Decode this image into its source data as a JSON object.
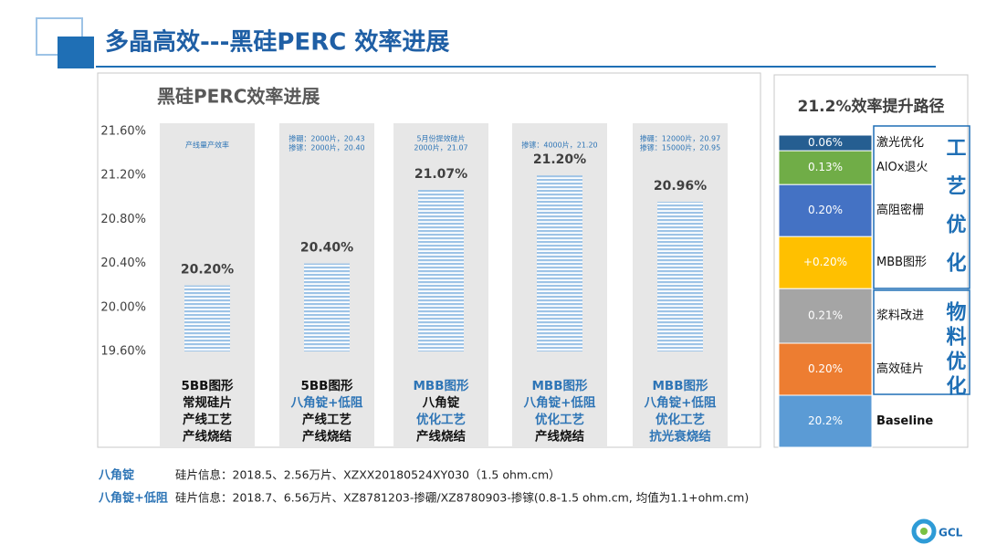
{
  "header": {
    "title": "多晶高效---黑硅PERC 效率进展"
  },
  "chart_data": [
    {
      "type": "bar",
      "title": "黑硅PERC效率进展",
      "categories": [
        [
          "5BB图形",
          "常规硅片",
          "产线工艺",
          "产线烧结"
        ],
        [
          "5BB图形",
          "八角锭+低阻",
          "产线工艺",
          "产线烧结"
        ],
        [
          "MBB图形",
          "八角锭",
          "优化工艺",
          "产线烧结"
        ],
        [
          "MBB图形",
          "八角锭+低阻",
          "优化工艺",
          "产线烧结"
        ],
        [
          "MBB图形",
          "八角锭+低阻",
          "优化工艺",
          "抗光衰烧结"
        ]
      ],
      "category_colors": [
        [
          "#111111",
          "#111111",
          "#111111",
          "#111111"
        ],
        [
          "#111111",
          "#2e75b6",
          "#111111",
          "#111111"
        ],
        [
          "#2e75b6",
          "#111111",
          "#2e75b6",
          "#111111"
        ],
        [
          "#2e75b6",
          "#2e75b6",
          "#2e75b6",
          "#111111"
        ],
        [
          "#2e75b6",
          "#2e75b6",
          "#2e75b6",
          "#2e75b6"
        ]
      ],
      "annotations": [
        [
          "产线量产效率"
        ],
        [
          "掺硼：2000片，20.43",
          "掺镓：2000片，20.40"
        ],
        [
          "5月份提效硅片",
          "2000片，21.07"
        ],
        [
          "掺镓：4000片，21.20"
        ],
        [
          "掺硼：12000片，20.97",
          "掺镓：15000片，20.95"
        ]
      ],
      "values": [
        20.2,
        20.4,
        21.07,
        21.2,
        20.96
      ],
      "value_labels": [
        "20.20%",
        "20.40%",
        "21.07%",
        "21.20%",
        "20.96%"
      ],
      "color": "#9dc3e6",
      "ylim": [
        19.6,
        21.6
      ],
      "yticks": [
        {
          "value": 19.6,
          "label": "19.60%"
        },
        {
          "value": 20.0,
          "label": "20.00%"
        },
        {
          "value": 20.4,
          "label": "20.40%"
        },
        {
          "value": 20.8,
          "label": "20.80%"
        },
        {
          "value": 21.2,
          "label": "21.20%"
        },
        {
          "value": 21.6,
          "label": "21.60%"
        }
      ]
    },
    {
      "type": "stacked",
      "title": "21.2%效率提升路径",
      "categories": [
        "Baseline",
        "高效硅片",
        "浆料改进",
        "MBB图形",
        "高阻密栅",
        "AlOx退火",
        "激光优化"
      ],
      "values": [
        20.2,
        0.2,
        0.21,
        0.2,
        0.2,
        0.13,
        0.06
      ],
      "value_labels": [
        "20.2%",
        "0.20%",
        "0.21%",
        "+0.20%",
        "0.20%",
        "0.13%",
        "0.06%"
      ],
      "colors": [
        "#5b9bd5",
        "#ed7d31",
        "#a5a5a5",
        "#ffc000",
        "#4472c4",
        "#70ad47",
        "#255e91"
      ],
      "ylim": [
        20.0,
        21.2
      ],
      "groups": [
        "工艺优化",
        "物料优化"
      ]
    }
  ],
  "notes": [
    {
      "label": "八角锭",
      "text": "硅片信息：2018.5、2.56万片、XZXX20180524XY030（1.5 ohm.cm）"
    },
    {
      "label": "八角锭+低阻",
      "text": "硅片信息：2018.7、6.56万片、XZ8781203-掺硼/XZ8780903-掺镓(0.8-1.5 ohm.cm, 均值为1.1+ohm.cm)"
    }
  ],
  "logo": "GCL"
}
